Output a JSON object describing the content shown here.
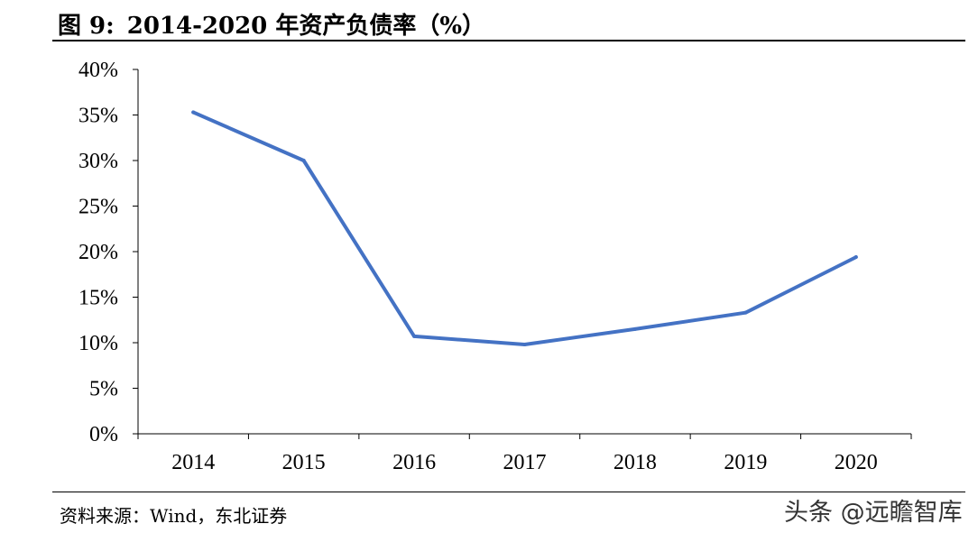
{
  "header": {
    "figure_label": "图 9:",
    "title": "2014-2020 年资产负债率（%）"
  },
  "footer": {
    "source": "资料来源：Wind，东北证券",
    "watermark": "头条 @远瞻智库"
  },
  "chart_data": {
    "type": "line",
    "title": "2014-2020 年资产负债率（%）",
    "xlabel": "",
    "ylabel": "",
    "categories": [
      "2014",
      "2015",
      "2016",
      "2017",
      "2018",
      "2019",
      "2020"
    ],
    "series": [
      {
        "values": [
          35.3,
          30.0,
          10.7,
          9.8,
          11.5,
          13.3,
          19.4
        ],
        "color": "#4472C4"
      }
    ],
    "ylim": [
      0,
      40
    ],
    "yticks": [
      0,
      5,
      10,
      15,
      20,
      25,
      30,
      35,
      40
    ],
    "ytick_labels": [
      "0%",
      "5%",
      "10%",
      "15%",
      "20%",
      "25%",
      "30%",
      "35%",
      "40%"
    ],
    "grid": false,
    "legend": "none"
  }
}
